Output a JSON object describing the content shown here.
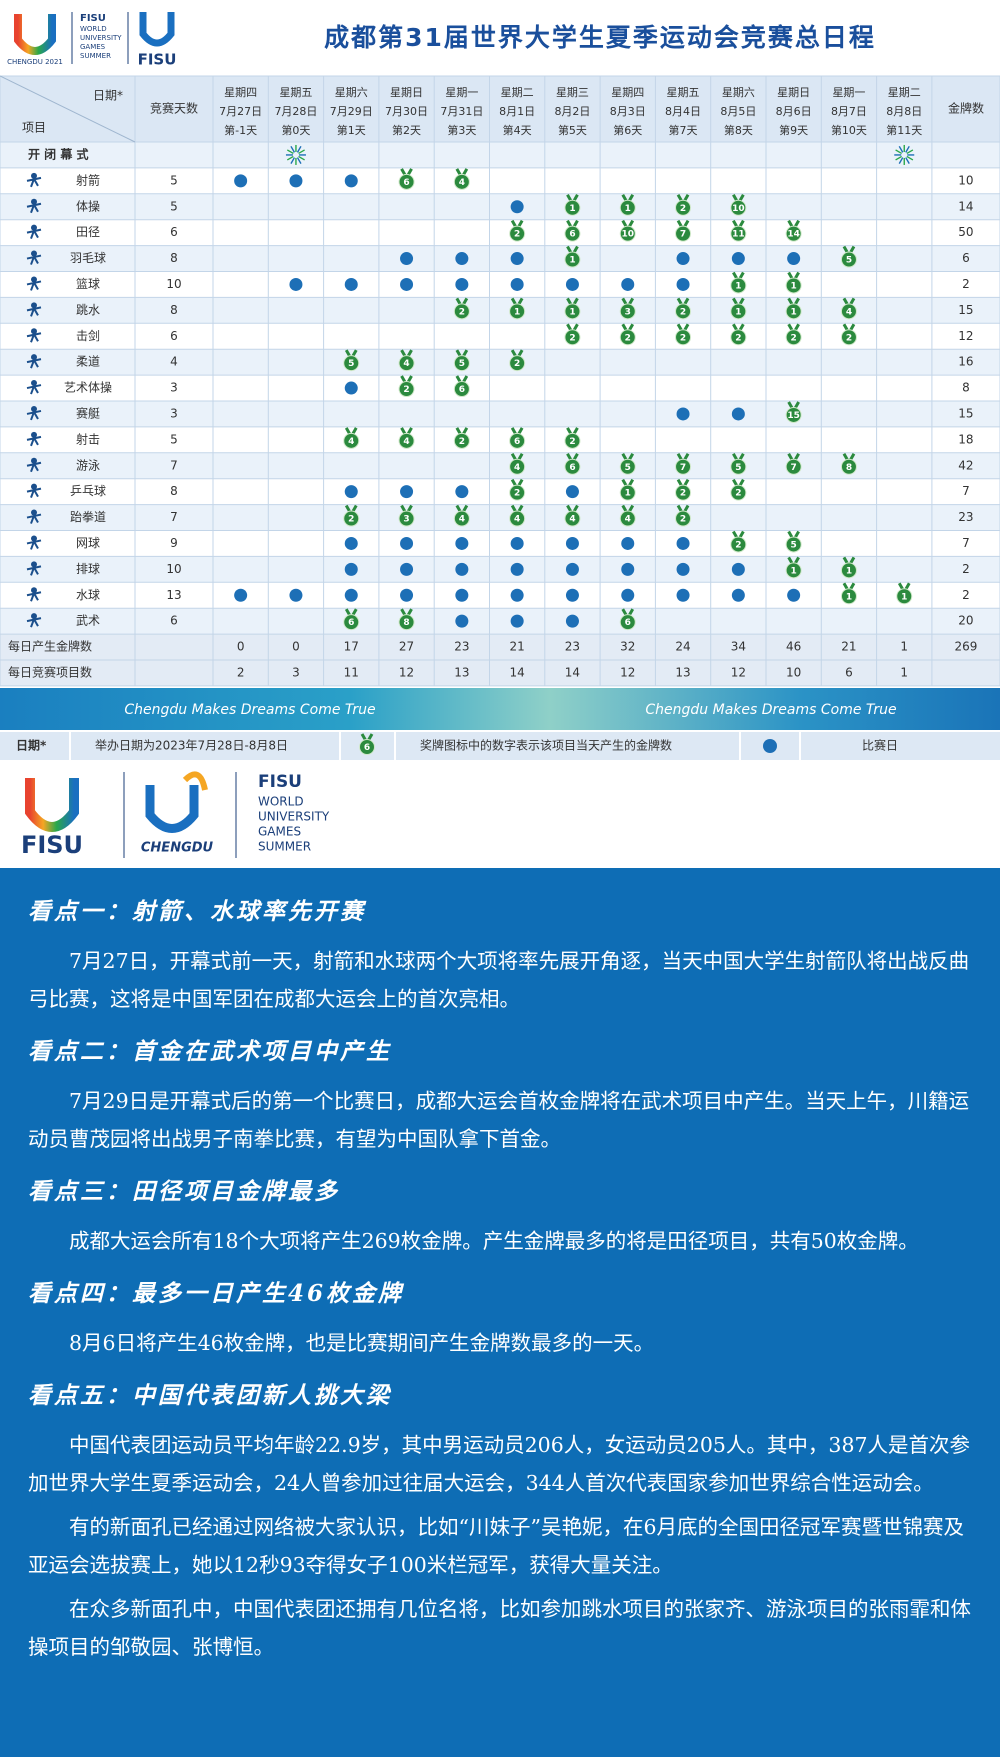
{
  "header": {
    "title": "成都第31届世界大学生夏季运动会竞赛总日程",
    "logo": {
      "chengdu": "CHENGDU 2021",
      "fisu_lines": [
        "FISU",
        "WORLD",
        "UNIVERSITY",
        "GAMES",
        "SUMMER"
      ],
      "fisu": "FISU"
    }
  },
  "table": {
    "corner_date": "日期*",
    "corner_item": "项目",
    "days_header": "竞赛天数",
    "medals_header": "金牌数",
    "opening": "开 闭 幕 式",
    "days": [
      {
        "weekday": "星期四",
        "date": "7月27日",
        "day": "第-1天"
      },
      {
        "weekday": "星期五",
        "date": "7月28日",
        "day": "第0天"
      },
      {
        "weekday": "星期六",
        "date": "7月29日",
        "day": "第1天"
      },
      {
        "weekday": "星期日",
        "date": "7月30日",
        "day": "第2天"
      },
      {
        "weekday": "星期一",
        "date": "7月31日",
        "day": "第3天"
      },
      {
        "weekday": "星期二",
        "date": "8月1日",
        "day": "第4天"
      },
      {
        "weekday": "星期三",
        "date": "8月2日",
        "day": "第5天"
      },
      {
        "weekday": "星期四",
        "date": "8月3日",
        "day": "第6天"
      },
      {
        "weekday": "星期五",
        "date": "8月4日",
        "day": "第7天"
      },
      {
        "weekday": "星期六",
        "date": "8月5日",
        "day": "第8天"
      },
      {
        "weekday": "星期日",
        "date": "8月6日",
        "day": "第9天"
      },
      {
        "weekday": "星期一",
        "date": "8月7日",
        "day": "第10天"
      },
      {
        "weekday": "星期二",
        "date": "8月8日",
        "day": "第11天"
      }
    ],
    "sports": [
      {
        "name": "射箭",
        "days": 5,
        "medals": 10,
        "cells": [
          true,
          true,
          true,
          6,
          4,
          null,
          null,
          null,
          null,
          null,
          null,
          null,
          null
        ]
      },
      {
        "name": "体操",
        "days": 5,
        "medals": 14,
        "cells": [
          null,
          null,
          null,
          null,
          null,
          true,
          1,
          1,
          2,
          10,
          null,
          null,
          null
        ]
      },
      {
        "name": "田径",
        "days": 6,
        "medals": 50,
        "cells": [
          null,
          null,
          null,
          null,
          null,
          2,
          6,
          10,
          7,
          11,
          14,
          null,
          null
        ]
      },
      {
        "name": "羽毛球",
        "days": 8,
        "medals": 6,
        "cells": [
          null,
          null,
          null,
          true,
          true,
          true,
          1,
          null,
          true,
          true,
          true,
          5,
          null
        ]
      },
      {
        "name": "篮球",
        "days": 10,
        "medals": 2,
        "cells": [
          null,
          true,
          true,
          true,
          true,
          true,
          true,
          true,
          true,
          1,
          1,
          null,
          null
        ]
      },
      {
        "name": "跳水",
        "days": 8,
        "medals": 15,
        "cells": [
          null,
          null,
          null,
          null,
          2,
          1,
          1,
          3,
          2,
          1,
          1,
          4,
          null
        ]
      },
      {
        "name": "击剑",
        "days": 6,
        "medals": 12,
        "cells": [
          null,
          null,
          null,
          null,
          null,
          null,
          2,
          2,
          2,
          2,
          2,
          2,
          null
        ]
      },
      {
        "name": "柔道",
        "days": 4,
        "medals": 16,
        "cells": [
          null,
          null,
          5,
          4,
          5,
          2,
          null,
          null,
          null,
          null,
          null,
          null,
          null
        ]
      },
      {
        "name": "艺术体操",
        "days": 3,
        "medals": 8,
        "cells": [
          null,
          null,
          true,
          2,
          6,
          null,
          null,
          null,
          null,
          null,
          null,
          null,
          null
        ]
      },
      {
        "name": "赛艇",
        "days": 3,
        "medals": 15,
        "cells": [
          null,
          null,
          null,
          null,
          null,
          null,
          null,
          null,
          true,
          true,
          15,
          null,
          null
        ]
      },
      {
        "name": "射击",
        "days": 5,
        "medals": 18,
        "cells": [
          null,
          null,
          4,
          4,
          2,
          6,
          2,
          null,
          null,
          null,
          null,
          null,
          null
        ]
      },
      {
        "name": "游泳",
        "days": 7,
        "medals": 42,
        "cells": [
          null,
          null,
          null,
          null,
          null,
          4,
          6,
          5,
          7,
          5,
          7,
          8,
          null
        ]
      },
      {
        "name": "乒乓球",
        "days": 8,
        "medals": 7,
        "cells": [
          null,
          null,
          true,
          true,
          true,
          2,
          true,
          1,
          2,
          2,
          null,
          null,
          null
        ]
      },
      {
        "name": "跆拳道",
        "days": 7,
        "medals": 23,
        "cells": [
          null,
          null,
          2,
          3,
          4,
          4,
          4,
          4,
          2,
          null,
          null,
          null,
          null
        ]
      },
      {
        "name": "网球",
        "days": 9,
        "medals": 7,
        "cells": [
          null,
          null,
          true,
          true,
          true,
          true,
          true,
          true,
          true,
          2,
          5,
          null,
          null
        ]
      },
      {
        "name": "排球",
        "days": 10,
        "medals": 2,
        "cells": [
          null,
          null,
          true,
          true,
          true,
          true,
          true,
          true,
          true,
          true,
          1,
          1,
          null
        ]
      },
      {
        "name": "水球",
        "days": 13,
        "medals": 2,
        "cells": [
          true,
          true,
          true,
          true,
          true,
          true,
          true,
          true,
          true,
          true,
          true,
          1,
          1
        ]
      },
      {
        "name": "武术",
        "days": 6,
        "medals": 20,
        "cells": [
          null,
          null,
          6,
          8,
          true,
          true,
          true,
          6,
          null,
          null,
          null,
          null,
          null
        ]
      }
    ],
    "summary": [
      {
        "label": "每日产生金牌数",
        "values": [
          0,
          0,
          17,
          27,
          23,
          21,
          23,
          32,
          24,
          34,
          46,
          21,
          1
        ],
        "total": 269
      },
      {
        "label": "每日竞赛项目数",
        "values": [
          2,
          3,
          11,
          12,
          13,
          14,
          14,
          12,
          13,
          12,
          10,
          6,
          1
        ]
      }
    ]
  },
  "banner": {
    "slogan": "Chengdu Makes Dreams Come True"
  },
  "legend": {
    "date_label": "日期*",
    "date_text": "举办日期为2023年7月28日-8月8日",
    "medal_example": 6,
    "medal_text": "奖牌图标中的数字表示该项目当天产生的金牌数",
    "dot_text": "比赛日"
  },
  "logo_bottom": {
    "fisu": "FISU",
    "chengdu": "CHENGDU",
    "fisu_lines": [
      "FISU",
      "WORLD",
      "UNIVERSITY",
      "GAMES",
      "SUMMER"
    ]
  },
  "highlights": [
    {
      "title": "看点一：射箭、水球率先开赛",
      "paragraphs": [
        "7月27日，开幕式前一天，射箭和水球两个大项将率先展开角逐，当天中国大学生射箭队将出战反曲弓比赛，这将是中国军团在成都大运会上的首次亮相。"
      ]
    },
    {
      "title": "看点二：首金在武术项目中产生",
      "paragraphs": [
        "7月29日是开幕式后的第一个比赛日，成都大运会首枚金牌将在武术项目中产生。当天上午，川籍运动员曹茂园将出战男子南拳比赛，有望为中国队拿下首金。"
      ]
    },
    {
      "title": "看点三：田径项目金牌最多",
      "paragraphs": [
        "成都大运会所有18个大项将产生269枚金牌。产生金牌最多的将是田径项目，共有50枚金牌。"
      ]
    },
    {
      "title": "看点四：最多一日产生46枚金牌",
      "paragraphs": [
        "8月6日将产生46枚金牌，也是比赛期间产生金牌数最多的一天。"
      ]
    },
    {
      "title": "看点五：中国代表团新人挑大梁",
      "paragraphs": [
        "中国代表团运动员平均年龄22.9岁，其中男运动员206人，女运动员205人。其中，387人是首次参加世界大学生夏季运动会，24人曾参加过往届大运会，344人首次代表国家参加世界综合性运动会。",
        "有的新面孔已经通过网络被大家认识，比如“川妹子”吴艳妮，在6月底的全国田径冠军赛暨世锦赛及亚运会选拔赛上，她以12秒93夺得女子100米栏冠军，获得大量关注。",
        "在众多新面孔中，中国代表团还拥有几位名将，比如参加跳水项目的张家齐、游泳项目的张雨霏和体操项目的邹敬园、张博恒。"
      ]
    }
  ]
}
